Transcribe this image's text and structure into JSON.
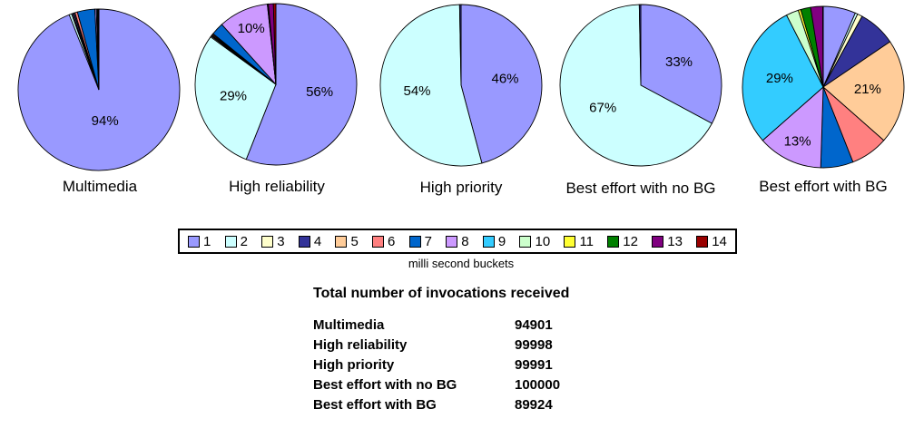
{
  "chart_data": {
    "type": "pie",
    "units": "percent of invocations per bucket",
    "categories": [
      "1",
      "2",
      "3",
      "4",
      "5",
      "6",
      "7",
      "8",
      "9",
      "10",
      "11",
      "12",
      "13",
      "14"
    ],
    "colors": [
      "#9999FF",
      "#CCFFFF",
      "#FFFFCC",
      "#333399",
      "#FFCC99",
      "#FF8080",
      "#0066CC",
      "#CC99FF",
      "#33CCFF",
      "#CCFFCC",
      "#FFFF33",
      "#008000",
      "#800080",
      "#990000"
    ],
    "legend_title": "milli second buckets",
    "charts": [
      {
        "title": "Multimedia",
        "values": [
          94,
          0.5,
          0.2,
          0.3,
          0.2,
          0.5,
          3.5,
          0.3,
          0.2,
          0.1,
          0.1,
          0.1,
          0,
          0
        ],
        "shown_labels": [
          "94%"
        ]
      },
      {
        "title": "High reliability",
        "values": [
          56,
          29,
          0.2,
          0.2,
          0.2,
          0.2,
          2.5,
          10,
          0.05,
          0.05,
          0.05,
          0.05,
          1.0,
          0.5
        ],
        "shown_labels": [
          "56%",
          "29%",
          "10%"
        ]
      },
      {
        "title": "High priority",
        "values": [
          45.85,
          53.85,
          0,
          0.3,
          0,
          0,
          0,
          0,
          0,
          0,
          0,
          0,
          0,
          0
        ],
        "shown_labels": [
          "46%",
          "54%"
        ]
      },
      {
        "title": "Best effort with no BG",
        "values": [
          32.85,
          66.85,
          0,
          0.3,
          0,
          0,
          0,
          0,
          0,
          0,
          0,
          0,
          0,
          0
        ],
        "shown_labels": [
          "33%",
          "67%"
        ]
      },
      {
        "title": "Best effort with BG",
        "values": [
          6.5,
          0.5,
          1,
          7.5,
          21,
          7.5,
          6.5,
          13,
          29,
          2.5,
          0.5,
          2,
          2.4,
          0.1
        ],
        "shown_labels": [
          "21%",
          "13%",
          "29%"
        ]
      }
    ]
  },
  "invocations": {
    "title": "Total number of invocations received",
    "rows": [
      {
        "label": "Multimedia",
        "value": "94901"
      },
      {
        "label": "High reliability",
        "value": "99998"
      },
      {
        "label": "High priority",
        "value": "99991"
      },
      {
        "label": "Best effort with no BG",
        "value": "100000"
      },
      {
        "label": "Best effort with BG",
        "value": "89924"
      }
    ]
  }
}
